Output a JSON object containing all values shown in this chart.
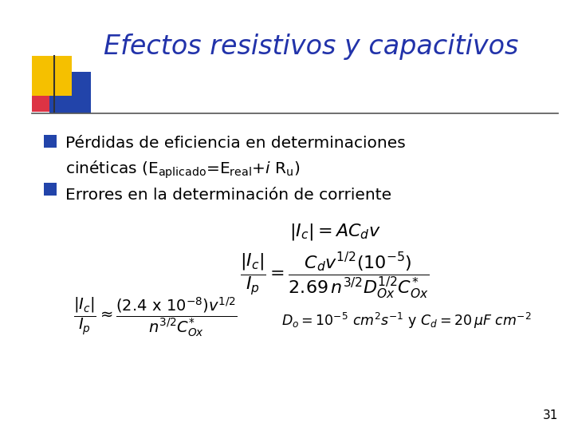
{
  "title": "Efectos resistivos y capacitivos",
  "title_color": "#2233AA",
  "title_fontsize": 24,
  "bg_color": "#FFFFFF",
  "bullet_color": "#000000",
  "bullet_square_color": "#2244AA",
  "page_number": "31",
  "decoration_yellow": "#F5C000",
  "decoration_blue": "#2244AA",
  "decoration_red": "#DD3344",
  "line_color": "#555555"
}
